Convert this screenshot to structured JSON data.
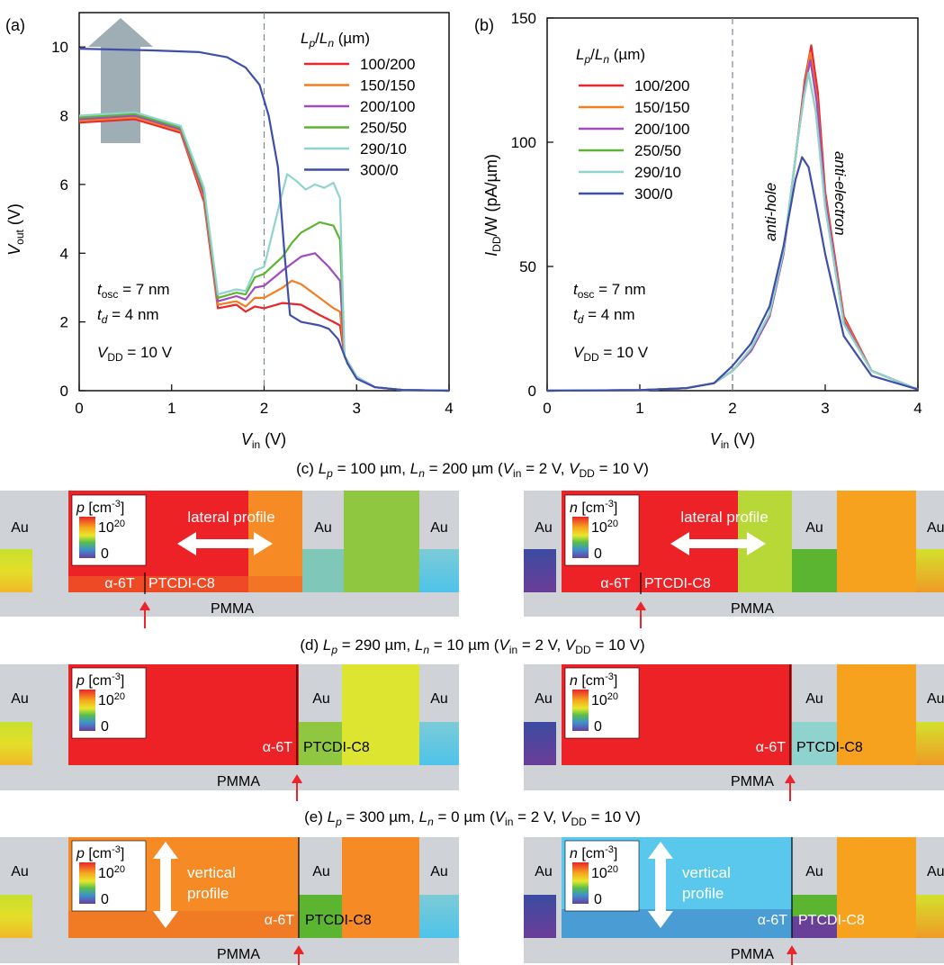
{
  "panel_letters": {
    "a": "(a)",
    "b": "(b)"
  },
  "legend_header": {
    "L": "L",
    "p": "p",
    "slash": "/",
    "n": "n",
    "unit": " (µm)"
  },
  "param_text": {
    "t": "t",
    "osc": "osc",
    "d": "d",
    "eq7": " = 7 nm",
    "eq4": " = 4 nm",
    "V": "V",
    "DD": "DD",
    "eq10": " = 10 V"
  },
  "axis_text": {
    "a_ylabel_main": "V",
    "a_ylabel_sub": "out",
    "a_ylabel_unit": " (V)",
    "x_main": "V",
    "x_sub": "in",
    "x_unit": " (V)",
    "b_ylabel_main": "I",
    "b_ylabel_sub": "DD",
    "b_ylabel_unit": "/W (pA/µm)"
  },
  "annotations_b": {
    "anti_hole": "anti-hole",
    "anti_electron": "anti-electron"
  },
  "panel_titles": {
    "c": {
      "prefix": "(c) ",
      "Lp": " = 100 µm, ",
      "Ln": " = 200 µm (",
      "Vin": " = 2 V, ",
      "VDD": " = 10 V)"
    },
    "d": {
      "prefix": "(d) ",
      "Lp": " = 290 µm, ",
      "Ln": " = 10 µm (",
      "Vin": " = 2 V, ",
      "VDD": " = 10 V)"
    },
    "e": {
      "prefix": "(e) ",
      "Lp": " = 300 µm, ",
      "Ln": " = 0 µm (",
      "Vin": " = 2 V, ",
      "VDD": " = 10 V)"
    }
  },
  "device_labels": {
    "au": "Au",
    "pmma": "PMMA",
    "a6t": "α-6T",
    "ptcdi": "PTCDI-C8",
    "p": "p",
    "n": "n",
    "cm": " [cm",
    "exp": "-3",
    "close": "]",
    "ten": "10",
    "twenty": "20",
    "zero": "0",
    "lateral": "lateral profile",
    "vertical": "vertical",
    "profile": "profile",
    "au_cut": "Au"
  },
  "colors": {
    "red": "#e8262b",
    "orange": "#f07f22",
    "purple": "#a04bc2",
    "green": "#5cb531",
    "cyan": "#8fd3cf",
    "blue": "#3e4fab",
    "gray_au": "#cfd2d6",
    "gray_pmma": "#cdd0d4",
    "dev_red": "#ec2226",
    "dev_orange": "#f68a25",
    "dev_yellow": "#dde530",
    "dev_green": "#8fc840",
    "dev_blue": "#5ac8ec"
  },
  "chart_data": [
    {
      "type": "line",
      "panel": "a",
      "xlim": [
        0,
        4
      ],
      "ylim": [
        0,
        11
      ],
      "xticks": [
        "0",
        "1",
        "2",
        "3",
        "4"
      ],
      "yticks": [
        "0",
        "2",
        "4",
        "6",
        "8",
        "10"
      ],
      "reference_line_x": 2,
      "series": [
        {
          "name": "100/200",
          "color": "#e8262b",
          "x": [
            0,
            0.6,
            1.1,
            1.35,
            1.5,
            1.7,
            1.8,
            1.9,
            2.0,
            2.2,
            2.4,
            2.6,
            2.75,
            2.82,
            2.87,
            3.0,
            3.2,
            3.5,
            4.0
          ],
          "y": [
            7.8,
            7.9,
            7.5,
            5.5,
            2.4,
            2.5,
            2.3,
            2.45,
            2.4,
            2.55,
            2.5,
            2.2,
            2.0,
            1.9,
            1.0,
            0.4,
            0.1,
            0.02,
            0
          ]
        },
        {
          "name": "150/150",
          "color": "#f07f22",
          "x": [
            0,
            0.6,
            1.1,
            1.35,
            1.5,
            1.7,
            1.8,
            1.9,
            2.0,
            2.2,
            2.3,
            2.4,
            2.6,
            2.75,
            2.82,
            2.87,
            3.0,
            3.2,
            3.5,
            4.0
          ],
          "y": [
            7.85,
            7.95,
            7.55,
            5.6,
            2.5,
            2.6,
            2.45,
            2.7,
            2.7,
            3.0,
            3.2,
            3.1,
            2.7,
            2.4,
            2.3,
            1.0,
            0.4,
            0.1,
            0.02,
            0
          ]
        },
        {
          "name": "200/100",
          "color": "#a04bc2",
          "x": [
            0,
            0.6,
            1.1,
            1.35,
            1.5,
            1.7,
            1.8,
            1.9,
            2.0,
            2.2,
            2.4,
            2.55,
            2.7,
            2.82,
            2.87,
            3.0,
            3.2,
            3.5,
            4.0
          ],
          "y": [
            7.9,
            8.0,
            7.6,
            5.7,
            2.6,
            2.75,
            2.65,
            3.0,
            3.05,
            3.5,
            3.9,
            4.0,
            3.6,
            3.2,
            1.0,
            0.4,
            0.1,
            0.02,
            0
          ]
        },
        {
          "name": "250/50",
          "color": "#5cb531",
          "x": [
            0,
            0.6,
            1.1,
            1.35,
            1.5,
            1.7,
            1.8,
            1.9,
            2.0,
            2.2,
            2.3,
            2.4,
            2.6,
            2.75,
            2.82,
            2.87,
            3.0,
            3.2,
            3.5,
            4.0
          ],
          "y": [
            7.95,
            8.05,
            7.65,
            5.8,
            2.7,
            2.85,
            2.8,
            3.3,
            3.4,
            3.9,
            4.3,
            4.6,
            4.9,
            4.8,
            4.4,
            1.0,
            0.4,
            0.1,
            0.02,
            0
          ]
        },
        {
          "name": "290/10",
          "color": "#8fd3cf",
          "x": [
            0,
            0.6,
            1.1,
            1.35,
            1.5,
            1.7,
            1.8,
            1.9,
            2.0,
            2.2,
            2.25,
            2.35,
            2.45,
            2.55,
            2.65,
            2.75,
            2.82,
            2.87,
            3.0,
            3.2,
            3.5,
            4.0
          ],
          "y": [
            8.0,
            8.1,
            7.7,
            5.9,
            2.8,
            2.95,
            2.9,
            3.5,
            3.6,
            5.8,
            6.3,
            6.1,
            5.85,
            6.0,
            5.9,
            6.05,
            5.6,
            1.0,
            0.4,
            0.1,
            0.02,
            0
          ]
        },
        {
          "name": "300/0",
          "color": "#3e4fab",
          "x": [
            0,
            0.8,
            1.3,
            1.6,
            1.8,
            1.95,
            2.05,
            2.15,
            2.22,
            2.28,
            2.4,
            2.6,
            2.7,
            2.8,
            2.9,
            3.0,
            3.2,
            3.5,
            4.0
          ],
          "y": [
            9.95,
            9.9,
            9.85,
            9.7,
            9.4,
            8.9,
            8.0,
            6.5,
            4.0,
            2.2,
            2.0,
            1.9,
            1.8,
            1.5,
            0.8,
            0.35,
            0.1,
            0.02,
            0
          ]
        }
      ]
    },
    {
      "type": "line",
      "panel": "b",
      "xlim": [
        0,
        4
      ],
      "ylim": [
        0,
        150
      ],
      "xticks": [
        "0",
        "1",
        "2",
        "3",
        "4"
      ],
      "yticks": [
        "0",
        "50",
        "100",
        "150"
      ],
      "reference_line_x": 2,
      "series": [
        {
          "name": "100/200",
          "color": "#e8262b",
          "x": [
            0,
            1.0,
            1.5,
            1.8,
            2.0,
            2.2,
            2.4,
            2.55,
            2.7,
            2.78,
            2.85,
            2.92,
            3.0,
            3.2,
            3.5,
            4.0
          ],
          "y": [
            0,
            0.2,
            1,
            3,
            8,
            16,
            30,
            55,
            100,
            125,
            139,
            120,
            80,
            30,
            8,
            0.5
          ]
        },
        {
          "name": "150/150",
          "color": "#f07f22",
          "x": [
            0,
            1.0,
            1.5,
            1.8,
            2.0,
            2.2,
            2.4,
            2.55,
            2.7,
            2.78,
            2.84,
            2.91,
            3.0,
            3.2,
            3.5,
            4.0
          ],
          "y": [
            0,
            0.2,
            1,
            3,
            8,
            16,
            30,
            55,
            100,
            123,
            136,
            118,
            78,
            29,
            8,
            0.5
          ]
        },
        {
          "name": "200/100",
          "color": "#a04bc2",
          "x": [
            0,
            1.0,
            1.5,
            1.8,
            2.0,
            2.2,
            2.4,
            2.55,
            2.7,
            2.78,
            2.84,
            2.91,
            3.0,
            3.2,
            3.5,
            4.0
          ],
          "y": [
            0,
            0.2,
            1,
            3,
            8,
            16,
            30,
            55,
            100,
            122,
            133,
            116,
            77,
            28,
            8,
            0.5
          ]
        },
        {
          "name": "250/50",
          "color": "#5cb531",
          "x": [
            0,
            1.0,
            1.5,
            1.8,
            2.0,
            2.2,
            2.4,
            2.55,
            2.7,
            2.77,
            2.82,
            2.9,
            3.0,
            3.2,
            3.5,
            4.0
          ],
          "y": [
            0,
            0.2,
            1,
            3,
            8,
            17,
            31,
            56,
            100,
            118,
            128,
            112,
            74,
            27,
            8,
            0.5
          ]
        },
        {
          "name": "290/10",
          "color": "#8fd3cf",
          "x": [
            0,
            1.0,
            1.5,
            1.8,
            2.0,
            2.2,
            2.4,
            2.55,
            2.7,
            2.77,
            2.82,
            2.9,
            3.0,
            3.2,
            3.5,
            4.0
          ],
          "y": [
            0,
            0.2,
            1,
            3,
            8,
            17,
            31,
            56,
            100,
            118,
            128,
            112,
            74,
            27,
            8,
            0.5
          ]
        },
        {
          "name": "300/0",
          "color": "#3e4fab",
          "x": [
            0,
            1.0,
            1.5,
            1.8,
            2.0,
            2.2,
            2.4,
            2.55,
            2.68,
            2.75,
            2.82,
            2.9,
            3.0,
            3.2,
            3.5,
            4.0
          ],
          "y": [
            0,
            0.2,
            1,
            3,
            10,
            19,
            34,
            58,
            85,
            94,
            90,
            75,
            55,
            22,
            6,
            0.5
          ]
        }
      ]
    }
  ]
}
